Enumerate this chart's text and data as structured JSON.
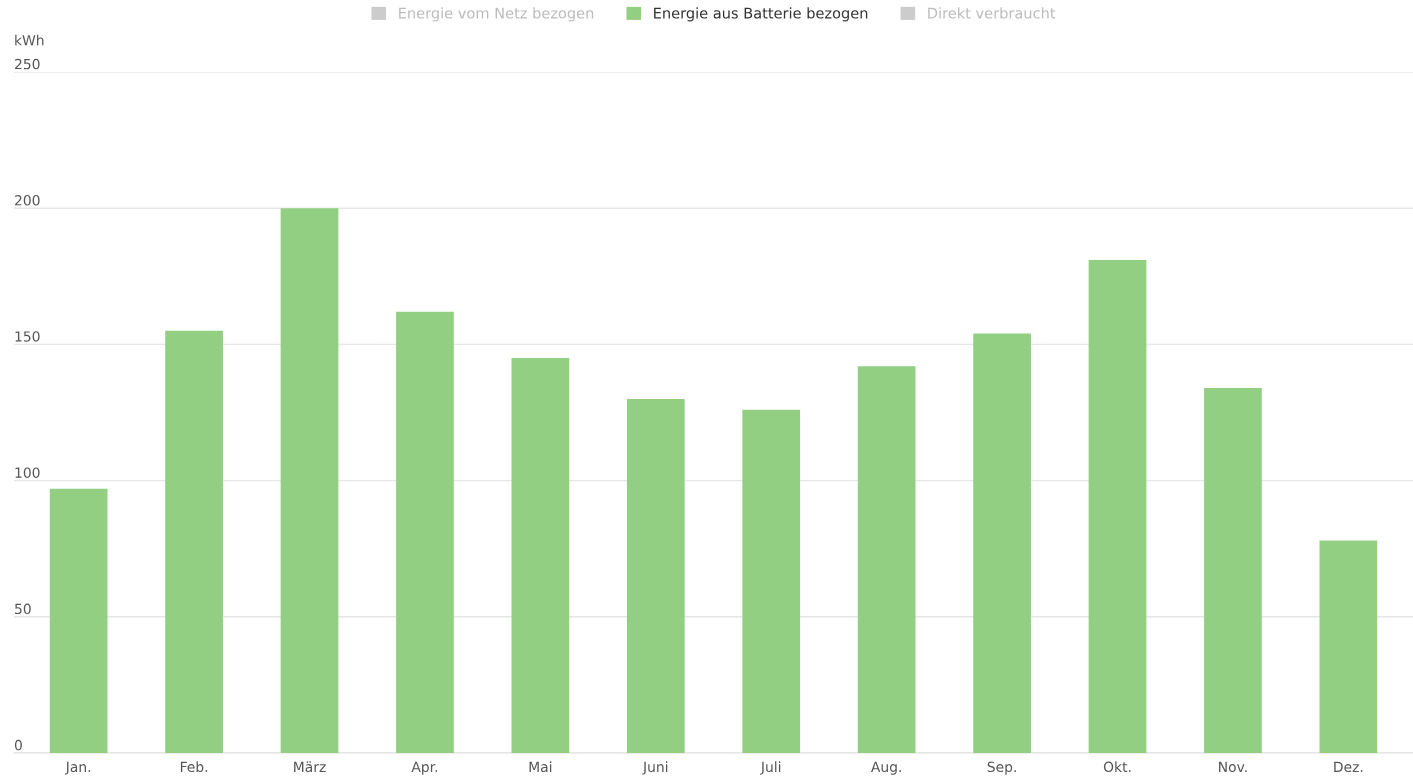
{
  "chart_data": {
    "type": "bar",
    "ylabel": "kWh",
    "categories": [
      "Jan.",
      "Feb.",
      "März",
      "Apr.",
      "Mai",
      "Juni",
      "Juli",
      "Aug.",
      "Sep.",
      "Okt.",
      "Nov.",
      "Dez."
    ],
    "series": [
      {
        "name": "Energie vom Netz bezogen",
        "color": "#cccccc",
        "values": [
          null,
          null,
          null,
          null,
          null,
          null,
          null,
          null,
          null,
          null,
          null,
          null
        ]
      },
      {
        "name": "Energie aus Batterie bezogen",
        "color": "#93cf82",
        "values": [
          97,
          155,
          200,
          162,
          145,
          130,
          126,
          142,
          154,
          181,
          134,
          78
        ]
      },
      {
        "name": "Direkt verbraucht",
        "color": "#cccccc",
        "values": [
          null,
          null,
          null,
          null,
          null,
          null,
          null,
          null,
          null,
          null,
          null,
          null
        ]
      }
    ],
    "ylim": [
      0,
      250
    ],
    "yticks": [
      0,
      50,
      100,
      150,
      200,
      250
    ],
    "grid": "y",
    "legend": "top"
  }
}
